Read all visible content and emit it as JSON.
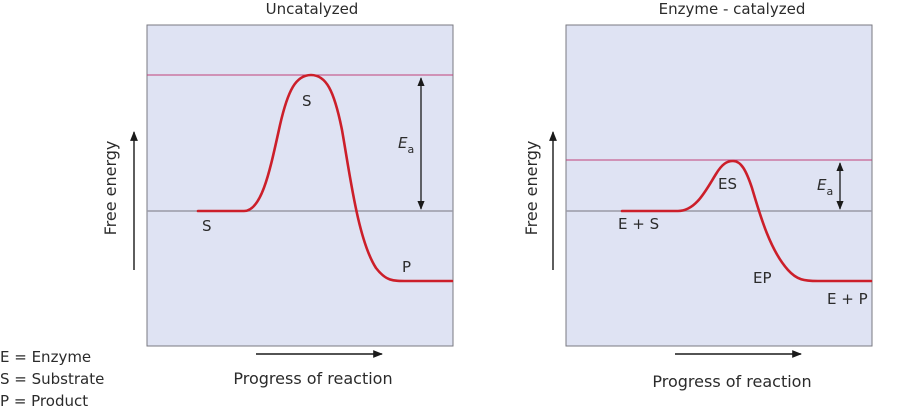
{
  "left_panel": {
    "title": "Uncatalyzed",
    "y_axis_label": "Free energy",
    "x_axis_label": "Progress of reaction",
    "labels": {
      "start": "S",
      "peak": "S",
      "end": "P",
      "ea_main": "E",
      "ea_sub": "a"
    }
  },
  "right_panel": {
    "title": "Enzyme - catalyzed",
    "y_axis_label": "Free energy",
    "x_axis_label": "Progress of reaction",
    "labels": {
      "start": "E + S",
      "peak": "ES",
      "intermediate": "EP",
      "end": "E + P",
      "ea_main": "E",
      "ea_sub": "a"
    }
  },
  "legend": [
    "E = Enzyme",
    "S = Substrate",
    "P = Product"
  ],
  "colors": {
    "panel_background": "#dfe3f3",
    "curve": "#cc1f2a",
    "peak_line": "#c0427a",
    "baseline": "#9a9aa6"
  }
}
